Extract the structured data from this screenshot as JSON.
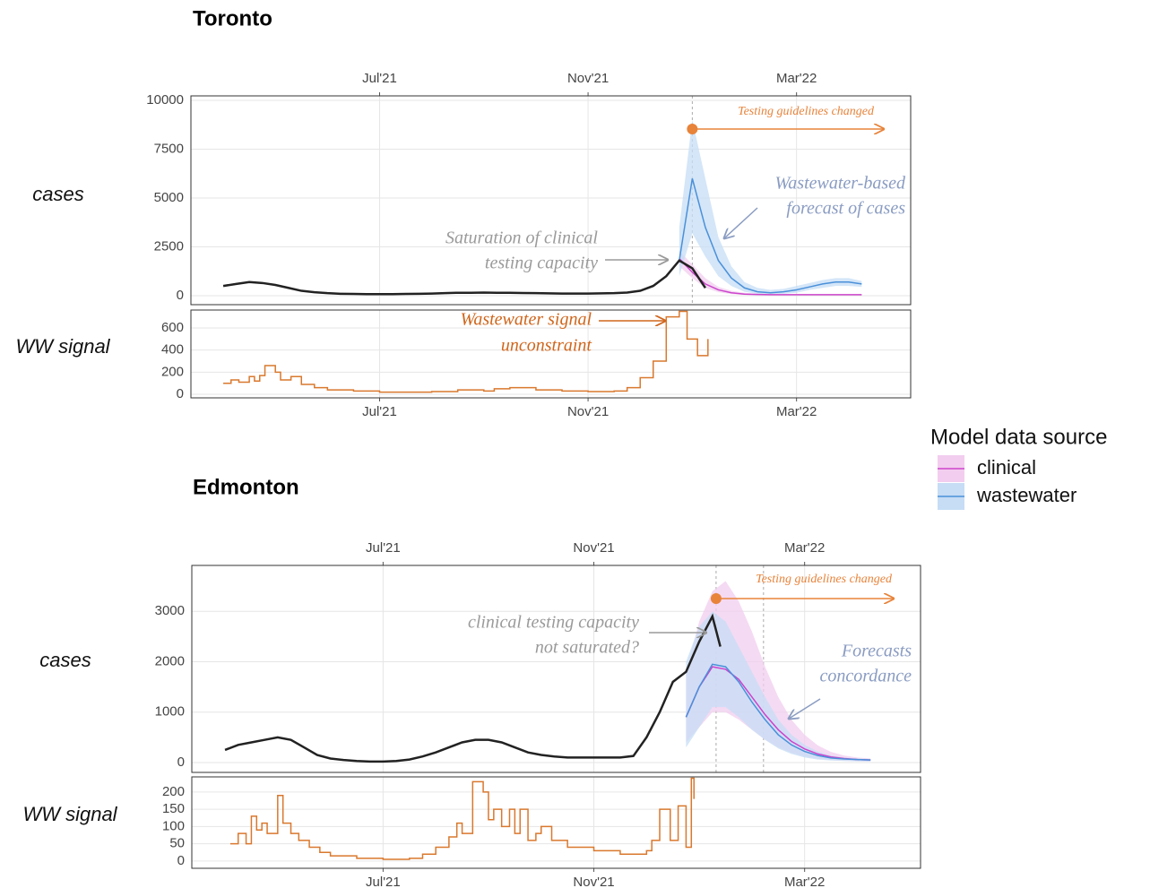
{
  "chart_data": [
    {
      "type": "line",
      "title": "Toronto",
      "ylabel": "cases",
      "legend_title": "Model data source",
      "xtick_position": "top",
      "xlim": [
        3.38,
        17.19
      ],
      "ylim": [
        -459,
        10229
      ],
      "yticks": [
        0,
        2500,
        5000,
        7500,
        10000
      ],
      "xticks": [
        {
          "value": 7,
          "label": "Jul'21"
        },
        {
          "value": 11,
          "label": "Nov'21"
        },
        {
          "value": 15,
          "label": "Mar'22"
        }
      ],
      "grid": true,
      "vlines": [
        13.0
      ],
      "series": [
        {
          "name": "clinical",
          "color": "#cc44cc",
          "band_color": "#f2cdef",
          "x": [
            12.75,
            13.0,
            13.25,
            13.5,
            13.75,
            14.0,
            14.25,
            14.5,
            14.75,
            15.0,
            15.25,
            15.5,
            15.75,
            16.0,
            16.25
          ],
          "values": [
            1900,
            1200,
            600,
            300,
            150,
            80,
            60,
            50,
            50,
            50,
            50,
            50,
            50,
            50,
            50
          ],
          "upper": [
            2300,
            1600,
            900,
            450,
            250,
            150,
            100,
            80,
            70,
            70,
            70,
            70,
            70,
            70,
            70
          ],
          "lower": [
            1500,
            900,
            400,
            180,
            80,
            40,
            30,
            25,
            25,
            25,
            25,
            25,
            25,
            25,
            25
          ]
        },
        {
          "name": "wastewater",
          "color": "#4a90d9",
          "band_color": "#c6ddf5",
          "x": [
            12.75,
            13.0,
            13.25,
            13.5,
            13.75,
            14.0,
            14.25,
            14.5,
            14.75,
            15.0,
            15.25,
            15.5,
            15.75,
            16.0,
            16.25
          ],
          "values": [
            1800,
            6000,
            3500,
            1800,
            900,
            400,
            200,
            150,
            200,
            300,
            450,
            600,
            700,
            700,
            600
          ],
          "upper": [
            3500,
            9000,
            6000,
            3000,
            1500,
            700,
            400,
            300,
            350,
            500,
            650,
            800,
            900,
            900,
            750
          ],
          "lower": [
            1000,
            3200,
            2000,
            1000,
            500,
            200,
            100,
            80,
            100,
            150,
            300,
            400,
            500,
            500,
            450
          ]
        },
        {
          "color": "#222222",
          "x": [
            4.0,
            4.25,
            4.5,
            4.75,
            5.0,
            5.25,
            5.5,
            5.75,
            6.0,
            6.25,
            6.5,
            6.75,
            7.0,
            7.25,
            7.5,
            7.75,
            8.0,
            8.25,
            8.5,
            8.75,
            9.0,
            9.25,
            9.5,
            9.75,
            10.0,
            10.25,
            10.5,
            10.75,
            11.0,
            11.25,
            11.5,
            11.75,
            12.0,
            12.25,
            12.5,
            12.75,
            13.0,
            13.25
          ],
          "values": [
            500,
            600,
            700,
            650,
            550,
            400,
            250,
            180,
            130,
            100,
            90,
            80,
            80,
            80,
            90,
            100,
            110,
            130,
            150,
            150,
            160,
            150,
            150,
            140,
            130,
            120,
            110,
            110,
            110,
            120,
            130,
            160,
            250,
            500,
            1000,
            1800,
            1400,
            400
          ]
        }
      ],
      "annotations": [
        {
          "lines": [
            "Testing guidelines changed"
          ],
          "color": "#e8833a"
        },
        {
          "lines": [
            "Wastewater-based",
            "forecast of cases"
          ],
          "color": "#8a9cc2"
        },
        {
          "lines": [
            "Saturation of clinical",
            "testing capacity"
          ],
          "color": "#9a9a9a"
        }
      ]
    },
    {
      "type": "line",
      "ylabel": "WW signal",
      "step": true,
      "xtick_position": "bottom",
      "xlim": [
        3.38,
        17.19
      ],
      "ylim": [
        -32,
        762
      ],
      "yticks": [
        0,
        200,
        400,
        600
      ],
      "xticks": [
        {
          "value": 7,
          "label": "Jul'21"
        },
        {
          "value": 11,
          "label": "Nov'21"
        },
        {
          "value": 15,
          "label": "Mar'22"
        }
      ],
      "grid": true,
      "series": [
        {
          "color": "#d9782d",
          "x": [
            4.0,
            4.15,
            4.3,
            4.5,
            4.6,
            4.7,
            4.8,
            5.0,
            5.1,
            5.3,
            5.5,
            5.75,
            6.0,
            6.5,
            7.0,
            7.5,
            8.0,
            8.5,
            9.0,
            9.2,
            9.5,
            10.0,
            10.5,
            11.0,
            11.5,
            11.75,
            12.0,
            12.25,
            12.5,
            12.75,
            12.9,
            13.1,
            13.3
          ],
          "values": [
            100,
            130,
            110,
            160,
            120,
            170,
            260,
            200,
            130,
            160,
            90,
            60,
            40,
            30,
            20,
            20,
            25,
            40,
            30,
            50,
            60,
            40,
            30,
            25,
            30,
            60,
            150,
            300,
            700,
            750,
            500,
            350,
            500
          ]
        }
      ],
      "annotations": [
        {
          "lines": [
            "Wastewater signal",
            "unconstraint"
          ],
          "color": "#d0661c"
        }
      ]
    },
    {
      "type": "line",
      "title": "Edmonton",
      "ylabel": "cases",
      "xtick_position": "top",
      "xlim": [
        3.37,
        17.2
      ],
      "ylim": [
        -196,
        3911
      ],
      "yticks": [
        0,
        1000,
        2000,
        3000
      ],
      "xticks": [
        {
          "value": 7,
          "label": "Jul'21"
        },
        {
          "value": 11,
          "label": "Nov'21"
        },
        {
          "value": 15,
          "label": "Mar'22"
        }
      ],
      "grid": true,
      "vlines": [
        13.32,
        14.22
      ],
      "series": [
        {
          "name": "clinical",
          "color": "#cc44cc",
          "band_color": "#f2cdef",
          "x": [
            12.75,
            13.0,
            13.25,
            13.5,
            13.75,
            14.0,
            14.25,
            14.5,
            14.75,
            15.0,
            15.25,
            15.5,
            15.75,
            16.0,
            16.25
          ],
          "values": [
            900,
            1500,
            1900,
            1850,
            1650,
            1300,
            950,
            650,
            420,
            270,
            170,
            110,
            80,
            60,
            50
          ],
          "upper": [
            1800,
            2800,
            3400,
            3600,
            3200,
            2600,
            1900,
            1300,
            850,
            550,
            340,
            210,
            140,
            100,
            80
          ],
          "lower": [
            400,
            700,
            1000,
            1000,
            850,
            650,
            450,
            300,
            190,
            120,
            75,
            50,
            35,
            25,
            20
          ]
        },
        {
          "name": "wastewater",
          "color": "#4a90d9",
          "band_color": "#c6ddf5",
          "x": [
            12.75,
            13.0,
            13.25,
            13.5,
            13.75,
            14.0,
            14.25,
            14.5,
            14.75,
            15.0,
            15.25,
            15.5,
            15.75,
            16.0,
            16.25
          ],
          "values": [
            900,
            1500,
            1950,
            1900,
            1600,
            1200,
            850,
            550,
            350,
            220,
            140,
            90,
            70,
            60,
            50
          ],
          "upper": [
            2000,
            2700,
            3000,
            2800,
            2300,
            1800,
            1300,
            850,
            550,
            350,
            220,
            140,
            100,
            80,
            70
          ],
          "lower": [
            300,
            700,
            1100,
            1100,
            900,
            650,
            450,
            280,
            170,
            100,
            60,
            40,
            30,
            25,
            20
          ]
        },
        {
          "color": "#222222",
          "x": [
            4.0,
            4.25,
            4.5,
            4.75,
            5.0,
            5.25,
            5.5,
            5.75,
            6.0,
            6.25,
            6.5,
            6.75,
            7.0,
            7.25,
            7.5,
            7.75,
            8.0,
            8.25,
            8.5,
            8.75,
            9.0,
            9.25,
            9.5,
            9.75,
            10.0,
            10.25,
            10.5,
            10.75,
            11.0,
            11.25,
            11.5,
            11.75,
            12.0,
            12.25,
            12.5,
            12.75,
            13.0,
            13.25,
            13.4
          ],
          "values": [
            250,
            350,
            400,
            450,
            500,
            450,
            300,
            150,
            80,
            50,
            30,
            20,
            20,
            30,
            60,
            120,
            200,
            300,
            400,
            450,
            450,
            400,
            300,
            200,
            150,
            120,
            100,
            100,
            100,
            100,
            100,
            130,
            500,
            1000,
            1600,
            1800,
            2400,
            2900,
            2300
          ]
        }
      ],
      "annotations": [
        {
          "lines": [
            "Testing guidelines changed"
          ],
          "color": "#e8833a"
        },
        {
          "lines": [
            "clinical testing capacity",
            "not saturated?"
          ],
          "color": "#9a9a9a"
        },
        {
          "lines": [
            "Forecasts",
            "concordance"
          ],
          "color": "#8a9cc2"
        }
      ]
    },
    {
      "type": "line",
      "ylabel": "WW signal",
      "step": true,
      "xtick_position": "bottom",
      "xlim": [
        3.37,
        17.2
      ],
      "ylim": [
        -21,
        244
      ],
      "yticks": [
        0,
        50,
        100,
        150,
        200
      ],
      "xticks": [
        {
          "value": 7,
          "label": "Jul'21"
        },
        {
          "value": 11,
          "label": "Nov'21"
        },
        {
          "value": 15,
          "label": "Mar'22"
        }
      ],
      "grid": true,
      "series": [
        {
          "color": "#d9782d",
          "x": [
            4.1,
            4.25,
            4.4,
            4.5,
            4.6,
            4.7,
            4.8,
            5.0,
            5.1,
            5.25,
            5.4,
            5.6,
            5.8,
            6.0,
            6.5,
            7.0,
            7.5,
            7.75,
            8.0,
            8.25,
            8.4,
            8.5,
            8.7,
            8.9,
            9.0,
            9.1,
            9.25,
            9.4,
            9.5,
            9.6,
            9.75,
            9.9,
            10.0,
            10.2,
            10.5,
            11.0,
            11.5,
            12.0,
            12.1,
            12.25,
            12.45,
            12.6,
            12.75,
            12.85,
            12.9
          ],
          "values": [
            50,
            80,
            50,
            130,
            90,
            110,
            80,
            190,
            110,
            80,
            60,
            40,
            25,
            15,
            8,
            5,
            8,
            20,
            40,
            70,
            110,
            80,
            230,
            200,
            120,
            150,
            100,
            150,
            80,
            150,
            60,
            80,
            100,
            60,
            40,
            30,
            20,
            30,
            60,
            150,
            60,
            160,
            40,
            240,
            180
          ]
        }
      ]
    }
  ]
}
